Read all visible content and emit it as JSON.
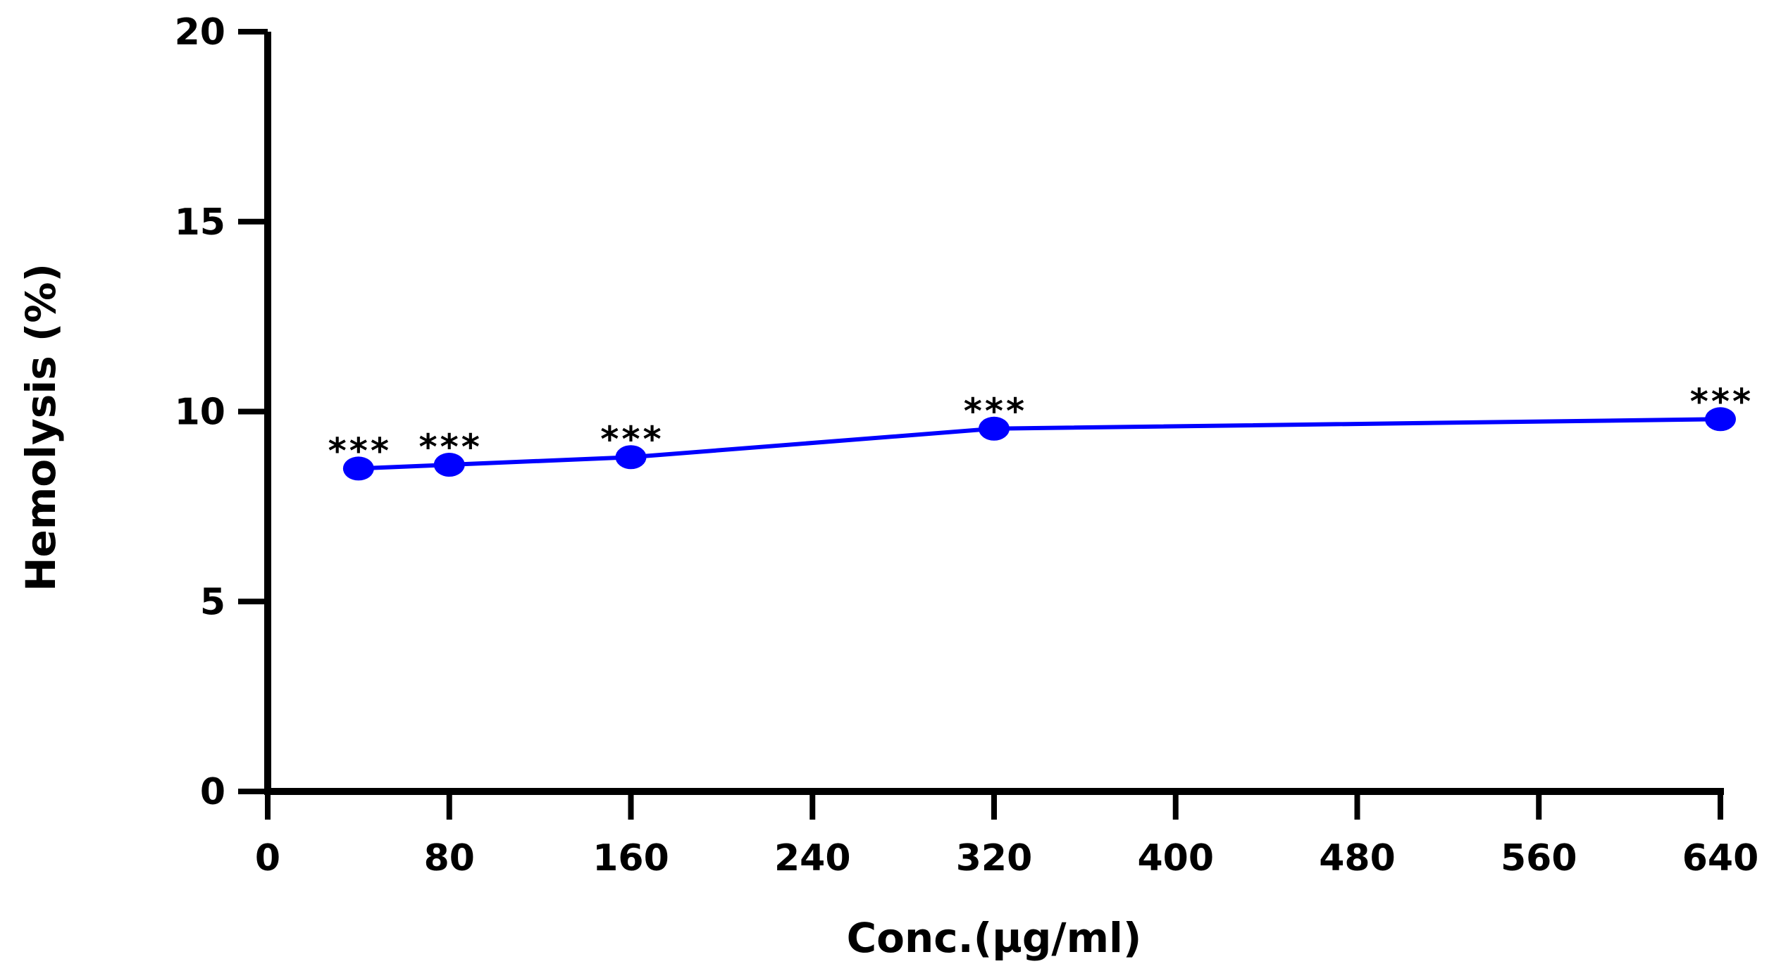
{
  "chart_data": {
    "type": "line",
    "xlabel": "Conc.(µg/ml)",
    "ylabel": "Hemolysis (%)",
    "xlim": [
      0,
      640
    ],
    "ylim": [
      0,
      20
    ],
    "x_ticks": [
      "0",
      "80",
      "160",
      "240",
      "320",
      "400",
      "480",
      "560",
      "640"
    ],
    "y_ticks": [
      "0",
      "5",
      "10",
      "15",
      "20"
    ],
    "grid": false,
    "line_color": "#0000ff",
    "series": [
      {
        "x": [
          40,
          80,
          160,
          320,
          640
        ],
        "y": [
          8.5,
          8.6,
          8.8,
          9.55,
          9.8
        ],
        "annotations": [
          "***",
          "***",
          "***",
          "***",
          "***"
        ]
      }
    ]
  }
}
